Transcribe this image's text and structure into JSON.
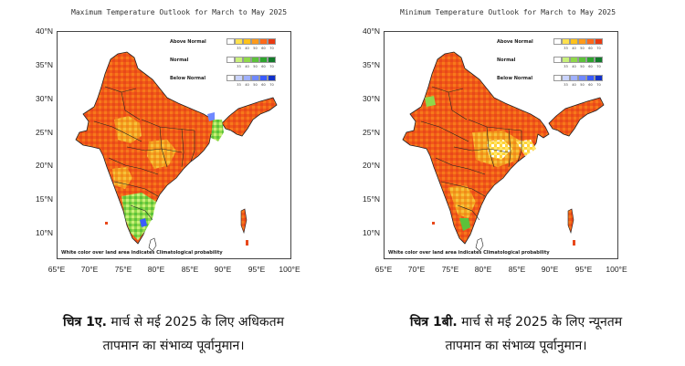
{
  "maps": [
    {
      "title": "Maximum Temperature Outlook for March to May 2025",
      "note": "White color over land area indicates Climatological probability",
      "caption_label": "चित्र 1ए.",
      "caption_line1": "मार्च से मई 2025 के लिए अधिकतम",
      "caption_line2": "तापमान का संभाव्य पूर्वानुमान।"
    },
    {
      "title": "Minimum Temperature Outlook for March to May 2025",
      "note": "White color over land area indicates Climatological probability",
      "caption_label": "चित्र 1बी.",
      "caption_line1": "मार्च से मई 2025 के लिए न्यूनतम",
      "caption_line2": "तापमान का संभाव्य पूर्वानुमान।"
    }
  ],
  "legend": {
    "categories": [
      {
        "label": "Above Normal",
        "colors": [
          "#ffffff",
          "#ffe14d",
          "#ffc21a",
          "#ff9a1a",
          "#ff6a1a",
          "#e83a12"
        ]
      },
      {
        "label": "Normal",
        "colors": [
          "#ffffff",
          "#c8f07a",
          "#8fd84a",
          "#5cc23a",
          "#2ea52e",
          "#137a2a"
        ]
      },
      {
        "label": "Below Normal",
        "colors": [
          "#ffffff",
          "#c9d3ff",
          "#9fb0ff",
          "#6f88ff",
          "#3a5cff",
          "#1030c8"
        ]
      }
    ],
    "ticks": [
      "33",
      "40",
      "50",
      "60",
      "70"
    ]
  },
  "lat_labels": [
    "40°N",
    "35°N",
    "30°N",
    "25°N",
    "20°N",
    "15°N",
    "10°N"
  ],
  "lon_labels": [
    "65°E",
    "70°E",
    "75°E",
    "80°E",
    "85°E",
    "90°E",
    "95°E",
    "100°E"
  ]
}
